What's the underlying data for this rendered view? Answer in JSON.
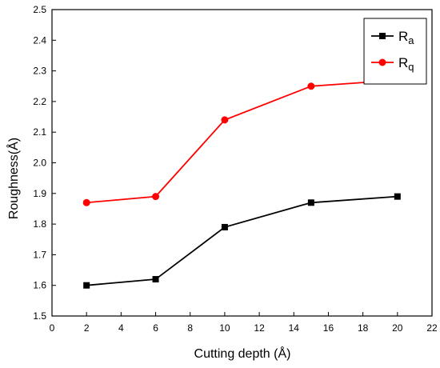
{
  "chart_data": {
    "type": "line",
    "title": "",
    "xlabel": "Cutting depth (Å)",
    "ylabel": "Roughness(Å)",
    "xlim": [
      0,
      22
    ],
    "ylim": [
      1.5,
      2.5
    ],
    "x_ticks": [
      0,
      2,
      4,
      6,
      8,
      10,
      12,
      14,
      16,
      18,
      20,
      22
    ],
    "y_ticks": [
      "1.5",
      "1.6",
      "1.7",
      "1.8",
      "1.9",
      "2.0",
      "2.1",
      "2.2",
      "2.3",
      "2.4",
      "2.5"
    ],
    "grid": false,
    "legend_position": "top-right",
    "x": [
      2,
      6,
      10,
      15,
      20
    ],
    "series": [
      {
        "name": "Ra",
        "label_main": "R",
        "label_sub": "a",
        "color": "#000000",
        "marker": "square",
        "values": [
          1.6,
          1.62,
          1.79,
          1.87,
          1.89
        ]
      },
      {
        "name": "Rq",
        "label_main": "R",
        "label_sub": "q",
        "color": "#ff0000",
        "marker": "circle",
        "values": [
          1.87,
          1.89,
          2.14,
          2.25,
          2.27
        ]
      }
    ]
  }
}
